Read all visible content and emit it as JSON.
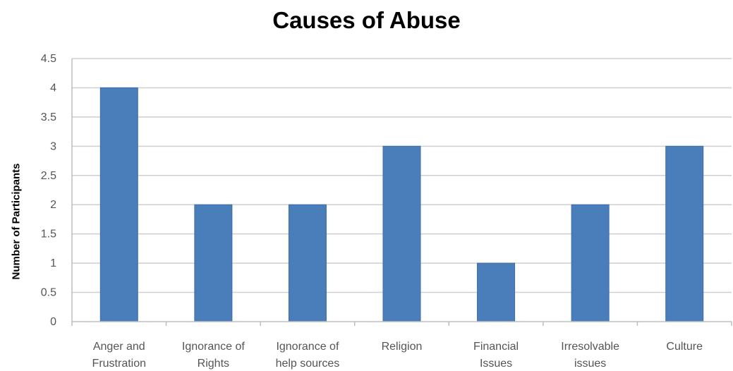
{
  "chart_data": {
    "type": "bar",
    "title": "Causes of Abuse",
    "xlabel": "",
    "ylabel": "Number of Participants",
    "categories": [
      [
        "Anger and",
        "Frustration"
      ],
      [
        "Ignorance of",
        "Rights"
      ],
      [
        "Ignorance of",
        "help sources"
      ],
      [
        "Religion"
      ],
      [
        "Financial",
        "Issues"
      ],
      [
        "Irresolvable",
        "issues"
      ],
      [
        "Culture"
      ]
    ],
    "values": [
      4,
      2,
      2,
      3,
      1,
      2,
      3
    ],
    "ylim": [
      0,
      4.5
    ],
    "yticks": [
      "0",
      "0.5",
      "1",
      "1.5",
      "2",
      "2.5",
      "3",
      "3.5",
      "4",
      "4.5"
    ],
    "grid": true,
    "legend": "none",
    "bar_color": "#4a7ebb",
    "grid_color": "#cfcfcf"
  }
}
